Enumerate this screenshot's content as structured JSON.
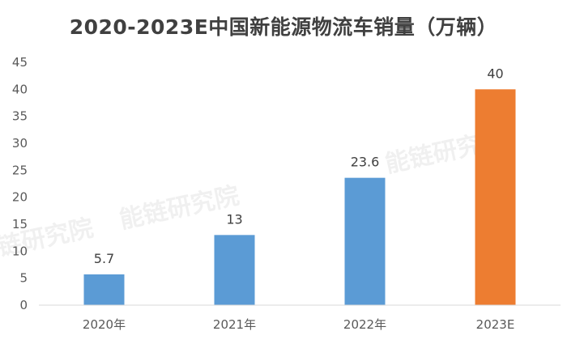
{
  "chart_data": {
    "type": "bar",
    "title": "2020-2023E中国新能源物流车销量（万辆）",
    "categories": [
      "2020年",
      "2021年",
      "2022年",
      "2023E"
    ],
    "values": [
      5.7,
      13,
      23.6,
      40
    ],
    "data_labels": [
      "5.7",
      "13",
      "23.6",
      "40"
    ],
    "bar_colors": [
      "#5b9bd5",
      "#5b9bd5",
      "#5b9bd5",
      "#ed7d31"
    ],
    "ylim": [
      0,
      45
    ],
    "yticks": [
      0,
      5,
      10,
      15,
      20,
      25,
      30,
      35,
      40,
      45
    ],
    "grid": false,
    "legend": "none"
  },
  "watermark": "能链研究院"
}
